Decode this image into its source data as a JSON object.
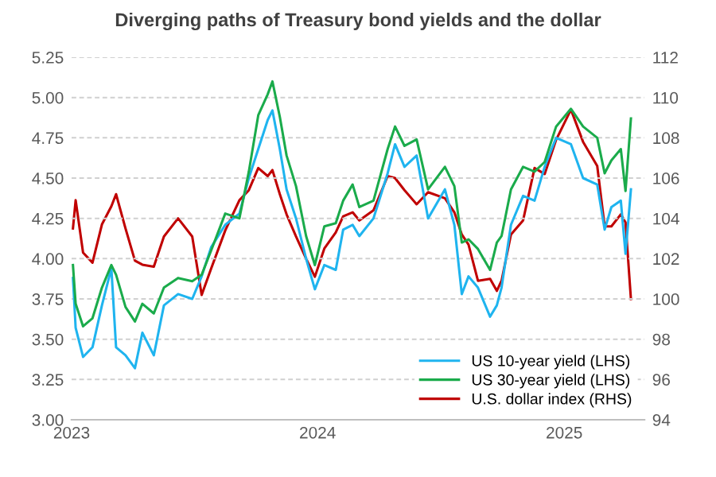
{
  "chart_data": {
    "type": "line",
    "title": "Diverging paths of Treasury bond yields and the dollar",
    "xlim": [
      "2023-01-01",
      "2025-04-30"
    ],
    "xticks": [
      {
        "value": "2023-01-01",
        "label": "2023"
      },
      {
        "value": "2024-01-01",
        "label": "2024"
      },
      {
        "value": "2025-01-01",
        "label": "2025"
      }
    ],
    "ylim": [
      3.0,
      5.25
    ],
    "yticks": [
      {
        "value": 3.0,
        "label": "3.00"
      },
      {
        "value": 3.25,
        "label": "3.25"
      },
      {
        "value": 3.5,
        "label": "3.50"
      },
      {
        "value": 3.75,
        "label": "3.75"
      },
      {
        "value": 4.0,
        "label": "4.00"
      },
      {
        "value": 4.25,
        "label": "4.25"
      },
      {
        "value": 4.5,
        "label": "4.50"
      },
      {
        "value": 4.75,
        "label": "4.75"
      },
      {
        "value": 5.0,
        "label": "5.00"
      },
      {
        "value": 5.25,
        "label": "5.25"
      }
    ],
    "y2lim": [
      94,
      112
    ],
    "y2ticks": [
      94,
      96,
      98,
      100,
      102,
      104,
      106,
      108,
      110,
      112
    ],
    "grid": "y",
    "legend": "bottom right",
    "marker": "none",
    "line_style": "solid",
    "x": [
      "2023-01-03",
      "2023-01-07",
      "2023-01-18",
      "2023-02-01",
      "2023-02-15",
      "2023-03-01",
      "2023-03-08",
      "2023-03-22",
      "2023-04-05",
      "2023-04-16",
      "2023-05-03",
      "2023-05-18",
      "2023-06-08",
      "2023-06-29",
      "2023-07-13",
      "2023-07-27",
      "2023-08-17",
      "2023-09-07",
      "2023-09-21",
      "2023-10-05",
      "2023-10-19",
      "2023-10-26",
      "2023-11-06",
      "2023-11-16",
      "2023-11-30",
      "2023-12-15",
      "2023-12-28",
      "2024-01-11",
      "2024-01-28",
      "2024-02-08",
      "2024-02-22",
      "2024-03-03",
      "2024-03-24",
      "2024-04-14",
      "2024-04-25",
      "2024-05-09",
      "2024-05-27",
      "2024-06-13",
      "2024-07-08",
      "2024-07-22",
      "2024-08-02",
      "2024-08-12",
      "2024-08-26",
      "2024-09-13",
      "2024-09-23",
      "2024-09-30",
      "2024-10-14",
      "2024-11-01",
      "2024-11-18",
      "2024-12-03",
      "2024-12-20",
      "2025-01-11",
      "2025-01-29",
      "2025-02-19",
      "2025-03-02",
      "2025-03-12",
      "2025-03-26",
      "2025-04-02",
      "2025-04-10"
    ],
    "series": [
      {
        "name": "US 10-year yield (LHS)",
        "color": "#1fb4ef",
        "values": [
          3.88,
          3.57,
          3.39,
          3.45,
          3.71,
          3.94,
          3.45,
          3.4,
          3.32,
          3.54,
          3.4,
          3.71,
          3.78,
          3.75,
          3.89,
          4.07,
          4.21,
          4.28,
          4.5,
          4.68,
          4.86,
          4.92,
          4.68,
          4.43,
          4.25,
          4.0,
          3.81,
          3.96,
          3.93,
          4.18,
          4.21,
          4.14,
          4.25,
          4.53,
          4.71,
          4.57,
          4.64,
          4.25,
          4.43,
          4.21,
          3.78,
          3.89,
          3.82,
          3.64,
          3.71,
          3.82,
          4.21,
          4.39,
          4.36,
          4.57,
          4.75,
          4.71,
          4.5,
          4.46,
          4.18,
          4.32,
          4.36,
          4.03,
          4.43
        ]
      },
      {
        "name": "US 30-year yield (LHS)",
        "color": "#1aab4b",
        "values": [
          3.96,
          3.72,
          3.58,
          3.63,
          3.82,
          3.96,
          3.9,
          3.7,
          3.61,
          3.72,
          3.66,
          3.82,
          3.88,
          3.86,
          3.9,
          4.05,
          4.28,
          4.25,
          4.54,
          4.89,
          5.02,
          5.1,
          4.88,
          4.64,
          4.45,
          4.14,
          3.96,
          4.2,
          4.22,
          4.36,
          4.46,
          4.32,
          4.36,
          4.68,
          4.82,
          4.7,
          4.74,
          4.43,
          4.57,
          4.45,
          4.1,
          4.12,
          4.06,
          3.93,
          4.1,
          4.14,
          4.43,
          4.57,
          4.54,
          4.6,
          4.82,
          4.93,
          4.82,
          4.75,
          4.53,
          4.61,
          4.68,
          4.42,
          4.87
        ]
      },
      {
        "name": "U.S. dollar index (RHS)",
        "color": "#c00000",
        "axis": "y2",
        "values": [
          103.5,
          104.9,
          102.3,
          101.8,
          103.7,
          104.6,
          105.2,
          103.5,
          101.9,
          101.7,
          101.6,
          103.1,
          104.0,
          103.1,
          100.2,
          101.5,
          103.4,
          104.9,
          105.4,
          106.5,
          106.1,
          106.4,
          105.2,
          104.2,
          103.1,
          102.0,
          101.1,
          102.5,
          103.3,
          104.1,
          104.3,
          103.9,
          104.4,
          106.1,
          106.0,
          105.4,
          104.7,
          105.3,
          105.0,
          104.3,
          103.2,
          102.7,
          100.9,
          101.0,
          100.4,
          100.9,
          103.2,
          103.9,
          106.5,
          106.2,
          107.9,
          109.4,
          107.8,
          106.6,
          103.6,
          103.6,
          104.2,
          103.8,
          100.0
        ]
      }
    ]
  }
}
